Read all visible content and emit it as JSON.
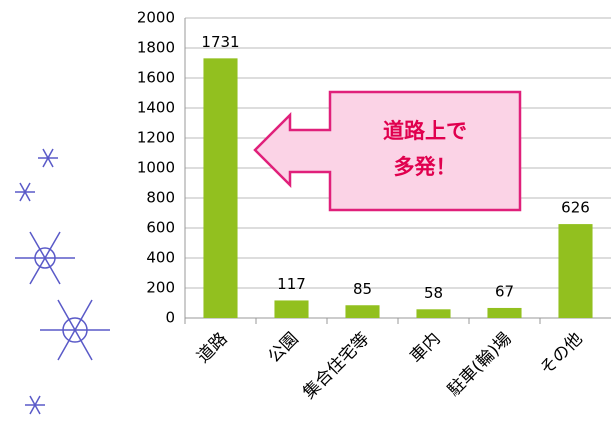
{
  "chart_data": {
    "type": "bar",
    "categories": [
      "道路",
      "公園",
      "集合住宅等",
      "車内",
      "駐車(輪)場",
      "その他"
    ],
    "values": [
      1731,
      117,
      85,
      58,
      67,
      626
    ],
    "color": "#92c01f",
    "ylim": [
      0,
      2000
    ],
    "yticks": [
      0,
      200,
      400,
      600,
      800,
      1000,
      1200,
      1400,
      1600,
      1800,
      2000
    ],
    "grid": true,
    "annotation": [
      "道路上で",
      "多発！"
    ]
  }
}
